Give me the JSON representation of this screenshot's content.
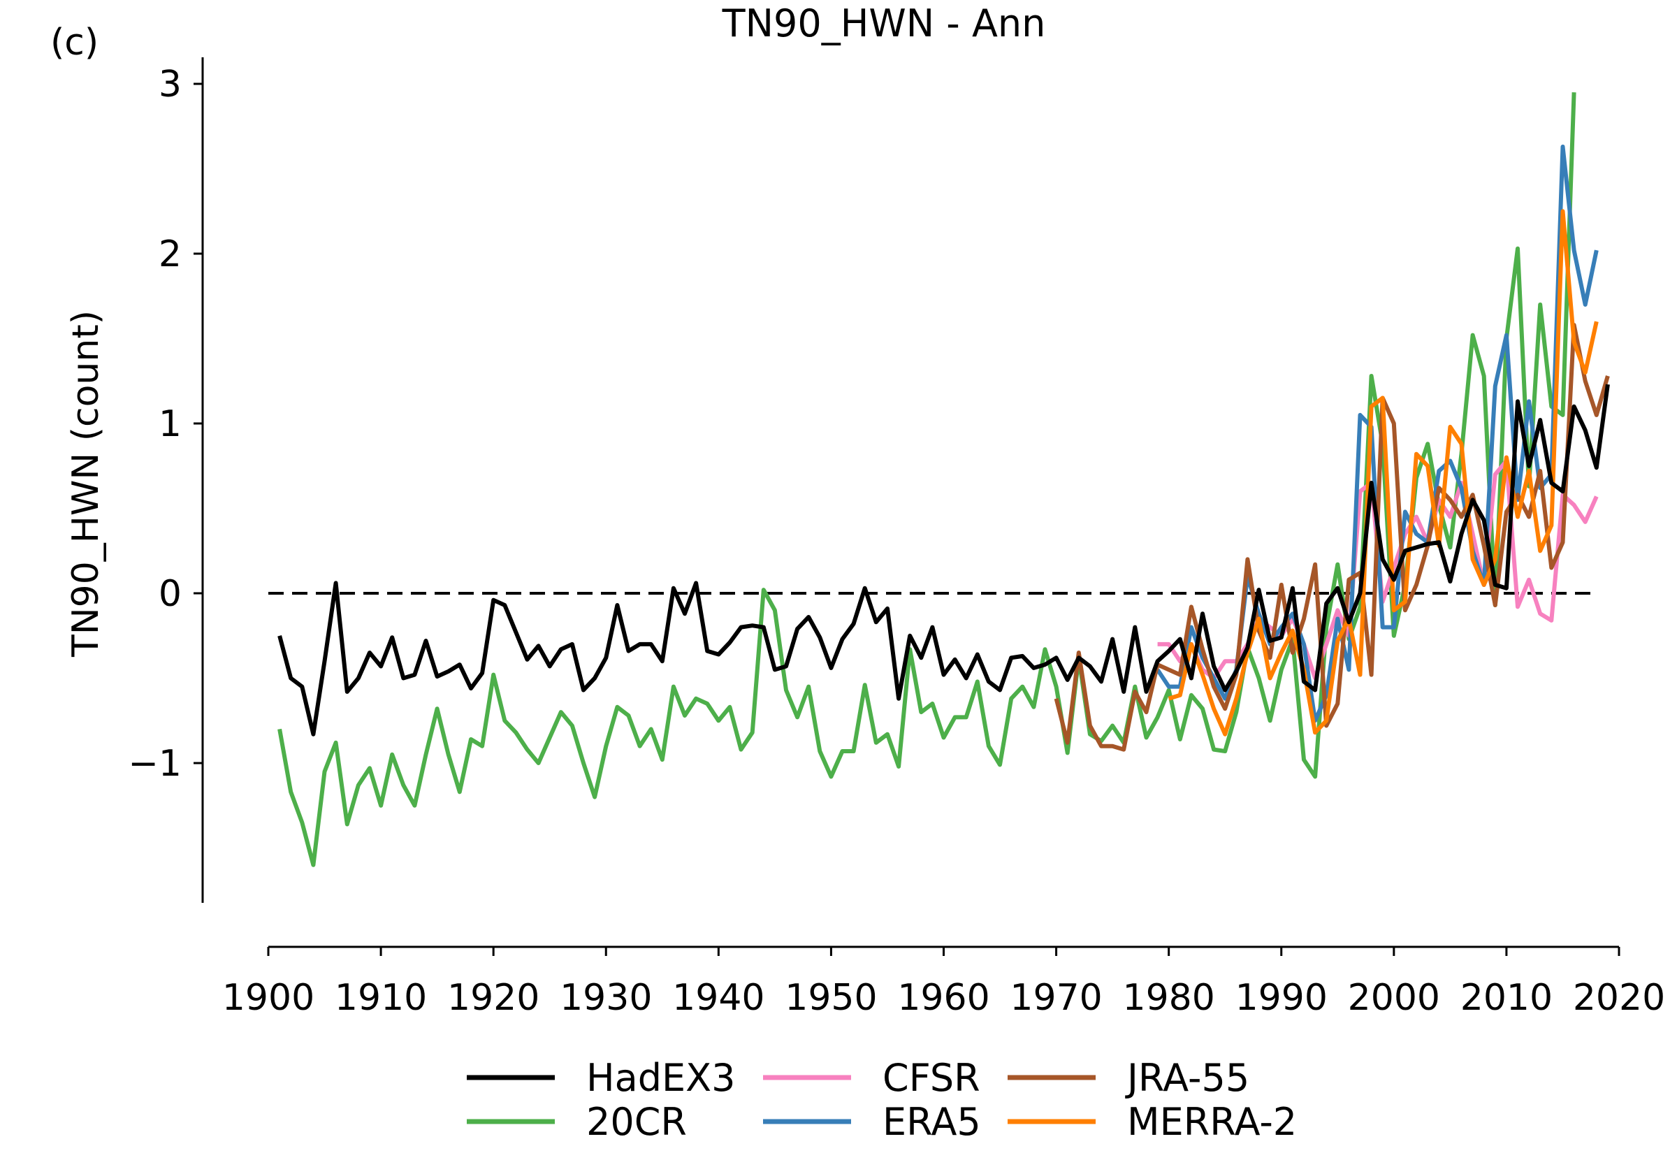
{
  "panel_label": "(c)",
  "chart_data": {
    "type": "line",
    "title": "TN90_HWN - Ann",
    "xlabel": "",
    "ylabel": "TN90_HWN (count)",
    "xlim": [
      1900,
      2020
    ],
    "ylim": [
      -1.85,
      3.15
    ],
    "xticks": [
      1900,
      1910,
      1920,
      1930,
      1940,
      1950,
      1960,
      1970,
      1980,
      1990,
      2000,
      2010,
      2020
    ],
    "yticks": [
      -1,
      0,
      1,
      2,
      3
    ],
    "ytick_labels": [
      "−1",
      "0",
      "1",
      "2",
      "3"
    ],
    "reference_line": 0,
    "grid": false,
    "legend_position": "bottom-center",
    "series": [
      {
        "name": "20CR",
        "color": "#4daf4a",
        "start_year": 1901,
        "values": [
          -0.8,
          -1.17,
          -1.35,
          -1.6,
          -1.05,
          -0.88,
          -1.36,
          -1.13,
          -1.03,
          -1.25,
          -0.95,
          -1.13,
          -1.25,
          -0.95,
          -0.68,
          -0.95,
          -1.17,
          -0.86,
          -0.9,
          -0.48,
          -0.75,
          -0.82,
          -0.92,
          -1.0,
          -0.85,
          -0.7,
          -0.78,
          -1.0,
          -1.2,
          -0.9,
          -0.67,
          -0.72,
          -0.9,
          -0.8,
          -0.98,
          -0.55,
          -0.72,
          -0.62,
          -0.65,
          -0.75,
          -0.67,
          -0.92,
          -0.82,
          0.02,
          -0.1,
          -0.57,
          -0.73,
          -0.55,
          -0.93,
          -1.08,
          -0.93,
          -0.93,
          -0.54,
          -0.88,
          -0.83,
          -1.02,
          -0.33,
          -0.7,
          -0.65,
          -0.85,
          -0.73,
          -0.73,
          -0.52,
          -0.9,
          -1.01,
          -0.62,
          -0.55,
          -0.67,
          -0.33,
          -0.55,
          -0.94,
          -0.38,
          -0.83,
          -0.87,
          -0.78,
          -0.88,
          -0.55,
          -0.85,
          -0.73,
          -0.57,
          -0.86,
          -0.6,
          -0.68,
          -0.92,
          -0.93,
          -0.7,
          -0.32,
          -0.5,
          -0.75,
          -0.45,
          -0.27,
          -0.98,
          -1.08,
          -0.2,
          0.17,
          -0.27,
          -0.08,
          1.28,
          0.88,
          -0.25,
          0.05,
          0.68,
          0.88,
          0.52,
          0.27,
          0.82,
          1.52,
          1.28,
          -0.07,
          1.5,
          2.03,
          0.63,
          1.7,
          1.1,
          1.05,
          2.95
        ]
      },
      {
        "name": "CFSR",
        "color": "#f781bf",
        "start_year": 1979,
        "values": [
          -0.3,
          -0.3,
          -0.4,
          -0.3,
          -0.45,
          -0.5,
          -0.4,
          -0.4,
          -0.3,
          -0.15,
          -0.2,
          -0.25,
          -0.15,
          -0.3,
          -0.5,
          -0.3,
          -0.1,
          -0.25,
          0.6,
          0.65,
          -0.05,
          0.15,
          0.35,
          0.45,
          0.3,
          0.55,
          0.45,
          0.65,
          0.35,
          0.05,
          0.7,
          0.78,
          -0.08,
          0.08,
          -0.12,
          -0.16,
          0.58,
          0.52,
          0.42,
          0.57
        ]
      },
      {
        "name": "ERA5",
        "color": "#377eb8",
        "start_year": 1979,
        "values": [
          -0.45,
          -0.55,
          -0.55,
          -0.2,
          -0.38,
          -0.5,
          -0.62,
          -0.45,
          0.1,
          -0.12,
          -0.3,
          -0.2,
          -0.12,
          -0.3,
          -0.75,
          -0.6,
          -0.15,
          -0.45,
          1.05,
          0.98,
          -0.2,
          -0.2,
          0.48,
          0.35,
          0.3,
          0.72,
          0.78,
          0.62,
          0.25,
          0.05,
          1.22,
          1.52,
          0.55,
          1.13,
          0.62,
          0.7,
          2.63,
          2.02,
          1.7,
          2.02
        ]
      },
      {
        "name": "JRA-55",
        "color": "#a65628",
        "start_year": 1970,
        "values": [
          -0.62,
          -0.88,
          -0.35,
          -0.78,
          -0.9,
          -0.9,
          -0.92,
          -0.58,
          -0.7,
          -0.42,
          -0.45,
          -0.48,
          -0.08,
          -0.33,
          -0.55,
          -0.68,
          -0.48,
          0.2,
          -0.22,
          -0.38,
          0.05,
          -0.35,
          -0.15,
          0.17,
          -0.78,
          -0.65,
          0.08,
          0.12,
          -0.48,
          1.15,
          1.0,
          -0.1,
          0.05,
          0.28,
          0.62,
          0.55,
          0.45,
          0.58,
          0.28,
          -0.07,
          0.48,
          0.58,
          0.45,
          0.72,
          0.15,
          0.3,
          1.58,
          1.25,
          1.05,
          1.28
        ]
      },
      {
        "name": "MERRA-2",
        "color": "#ff7f00",
        "start_year": 1980,
        "values": [
          -0.62,
          -0.6,
          -0.3,
          -0.48,
          -0.68,
          -0.83,
          -0.62,
          -0.35,
          -0.15,
          -0.5,
          -0.35,
          -0.22,
          -0.45,
          -0.82,
          -0.75,
          -0.28,
          -0.15,
          -0.48,
          1.1,
          1.15,
          -0.1,
          -0.05,
          0.82,
          0.75,
          0.28,
          0.98,
          0.88,
          0.2,
          0.05,
          0.2,
          0.8,
          0.45,
          0.72,
          0.25,
          0.4,
          2.25,
          1.48,
          1.3,
          1.6
        ]
      },
      {
        "name": "HadEX3",
        "color": "#000000",
        "start_year": 1901,
        "values": [
          -0.25,
          -0.5,
          -0.55,
          -0.83,
          -0.4,
          0.06,
          -0.58,
          -0.5,
          -0.35,
          -0.43,
          -0.26,
          -0.5,
          -0.48,
          -0.28,
          -0.49,
          -0.46,
          -0.42,
          -0.56,
          -0.47,
          -0.04,
          -0.07,
          -0.23,
          -0.39,
          -0.31,
          -0.43,
          -0.33,
          -0.3,
          -0.57,
          -0.5,
          -0.38,
          -0.07,
          -0.34,
          -0.3,
          -0.3,
          -0.4,
          0.03,
          -0.12,
          0.06,
          -0.34,
          -0.36,
          -0.29,
          -0.2,
          -0.19,
          -0.2,
          -0.45,
          -0.43,
          -0.21,
          -0.14,
          -0.26,
          -0.44,
          -0.27,
          -0.18,
          0.03,
          -0.17,
          -0.09,
          -0.62,
          -0.25,
          -0.38,
          -0.2,
          -0.48,
          -0.39,
          -0.5,
          -0.36,
          -0.52,
          -0.57,
          -0.38,
          -0.37,
          -0.44,
          -0.42,
          -0.38,
          -0.51,
          -0.38,
          -0.43,
          -0.52,
          -0.27,
          -0.58,
          -0.2,
          -0.58,
          -0.4,
          -0.34,
          -0.27,
          -0.5,
          -0.12,
          -0.43,
          -0.57,
          -0.46,
          -0.32,
          0.02,
          -0.28,
          -0.26,
          0.03,
          -0.52,
          -0.57,
          -0.06,
          0.03,
          -0.17,
          0.0,
          0.65,
          0.2,
          0.08,
          0.25,
          0.27,
          0.29,
          0.3,
          0.07,
          0.35,
          0.55,
          0.43,
          0.05,
          0.03,
          1.13,
          0.75,
          1.02,
          0.65,
          0.6,
          1.1,
          0.96,
          0.74,
          1.23
        ]
      }
    ],
    "legend": [
      {
        "label": "HadEX3",
        "color": "#000000"
      },
      {
        "label": "20CR",
        "color": "#4daf4a"
      },
      {
        "label": "CFSR",
        "color": "#f781bf"
      },
      {
        "label": "ERA5",
        "color": "#377eb8"
      },
      {
        "label": "JRA-55",
        "color": "#a65628"
      },
      {
        "label": "MERRA-2",
        "color": "#ff7f00"
      }
    ]
  }
}
